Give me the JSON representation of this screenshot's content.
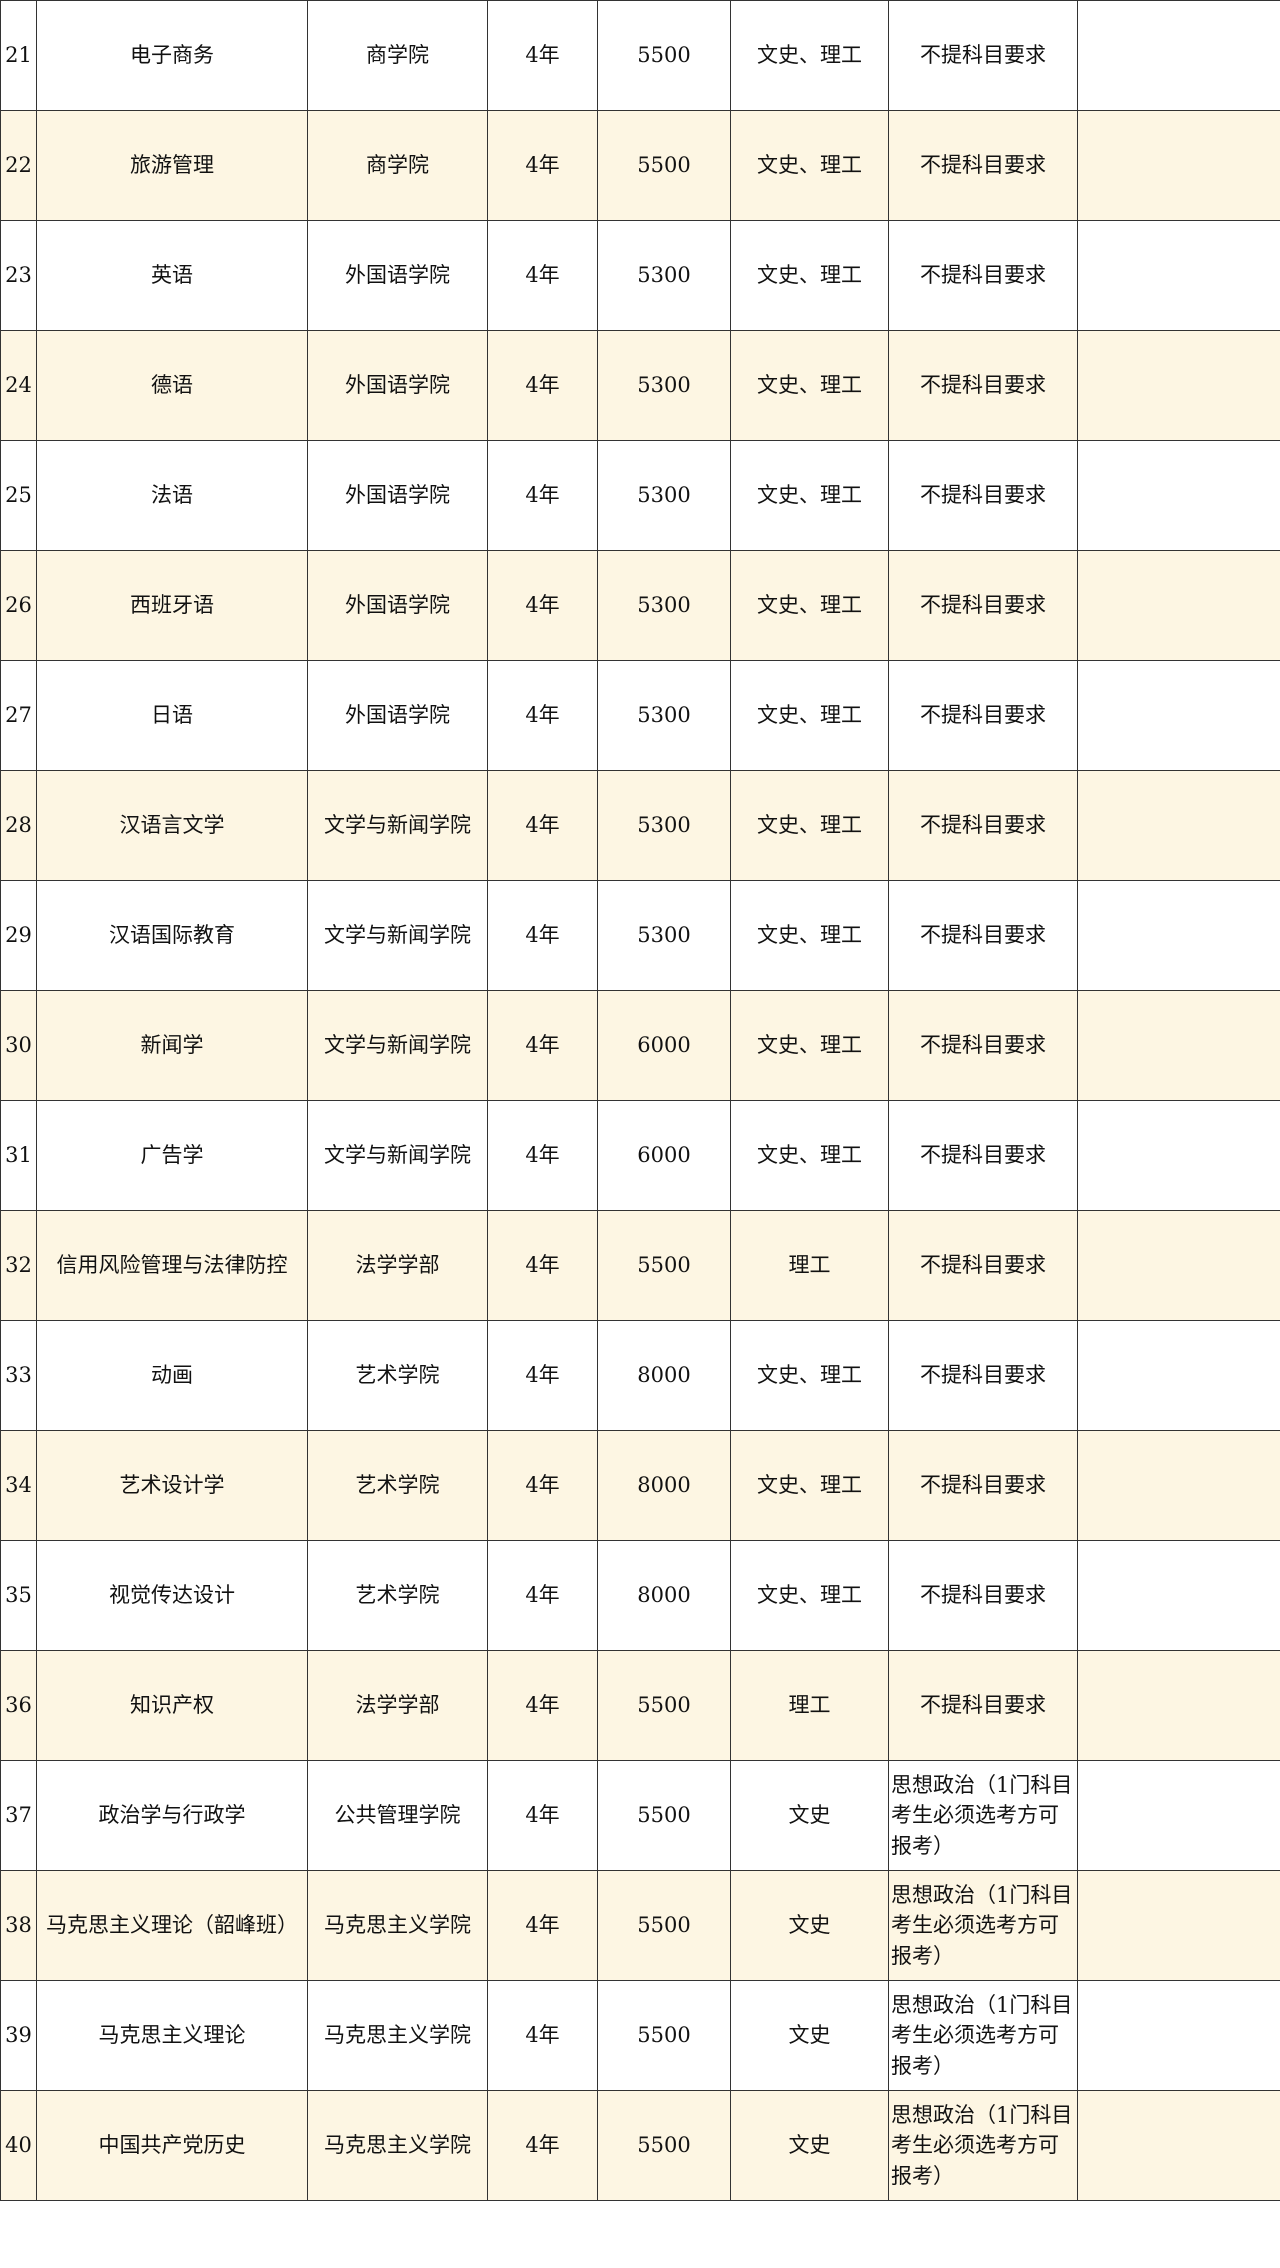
{
  "table": {
    "rows": [
      [
        "21",
        "电子商务",
        "商学院",
        "4年",
        "5500",
        "文史、理工",
        "不提科目要求"
      ],
      [
        "22",
        "旅游管理",
        "商学院",
        "4年",
        "5500",
        "文史、理工",
        "不提科目要求"
      ],
      [
        "23",
        "英语",
        "外国语学院",
        "4年",
        "5300",
        "文史、理工",
        "不提科目要求"
      ],
      [
        "24",
        "德语",
        "外国语学院",
        "4年",
        "5300",
        "文史、理工",
        "不提科目要求"
      ],
      [
        "25",
        "法语",
        "外国语学院",
        "4年",
        "5300",
        "文史、理工",
        "不提科目要求"
      ],
      [
        "26",
        "西班牙语",
        "外国语学院",
        "4年",
        "5300",
        "文史、理工",
        "不提科目要求"
      ],
      [
        "27",
        "日语",
        "外国语学院",
        "4年",
        "5300",
        "文史、理工",
        "不提科目要求"
      ],
      [
        "28",
        "汉语言文学",
        "文学与新闻学院",
        "4年",
        "5300",
        "文史、理工",
        "不提科目要求"
      ],
      [
        "29",
        "汉语国际教育",
        "文学与新闻学院",
        "4年",
        "5300",
        "文史、理工",
        "不提科目要求"
      ],
      [
        "30",
        "新闻学",
        "文学与新闻学院",
        "4年",
        "6000",
        "文史、理工",
        "不提科目要求"
      ],
      [
        "31",
        "广告学",
        "文学与新闻学院",
        "4年",
        "6000",
        "文史、理工",
        "不提科目要求"
      ],
      [
        "32",
        "信用风险管理与法律防控",
        "法学学部",
        "4年",
        "5500",
        "理工",
        "不提科目要求"
      ],
      [
        "33",
        "动画",
        "艺术学院",
        "4年",
        "8000",
        "文史、理工",
        "不提科目要求"
      ],
      [
        "34",
        "艺术设计学",
        "艺术学院",
        "4年",
        "8000",
        "文史、理工",
        "不提科目要求"
      ],
      [
        "35",
        "视觉传达设计",
        "艺术学院",
        "4年",
        "8000",
        "文史、理工",
        "不提科目要求"
      ],
      [
        "36",
        "知识产权",
        "法学学部",
        "4年",
        "5500",
        "理工",
        "不提科目要求"
      ],
      [
        "37",
        "政治学与行政学",
        "公共管理学院",
        "4年",
        "5500",
        "文史",
        "思想政治（1门科目考生必须选考方可报考）"
      ],
      [
        "38",
        "马克思主义理论（韶峰班）",
        "马克思主义学院",
        "4年",
        "5500",
        "文史",
        "思想政治（1门科目考生必须选考方可报考）"
      ],
      [
        "39",
        "马克思主义理论",
        "马克思主义学院",
        "4年",
        "5500",
        "文史",
        "思想政治（1门科目考生必须选考方可报考）"
      ],
      [
        "40",
        "中国共产党历史",
        "马克思主义学院",
        "4年",
        "5500",
        "文史",
        "思想政治（1门科目考生必须选考方可报考）"
      ]
    ]
  }
}
